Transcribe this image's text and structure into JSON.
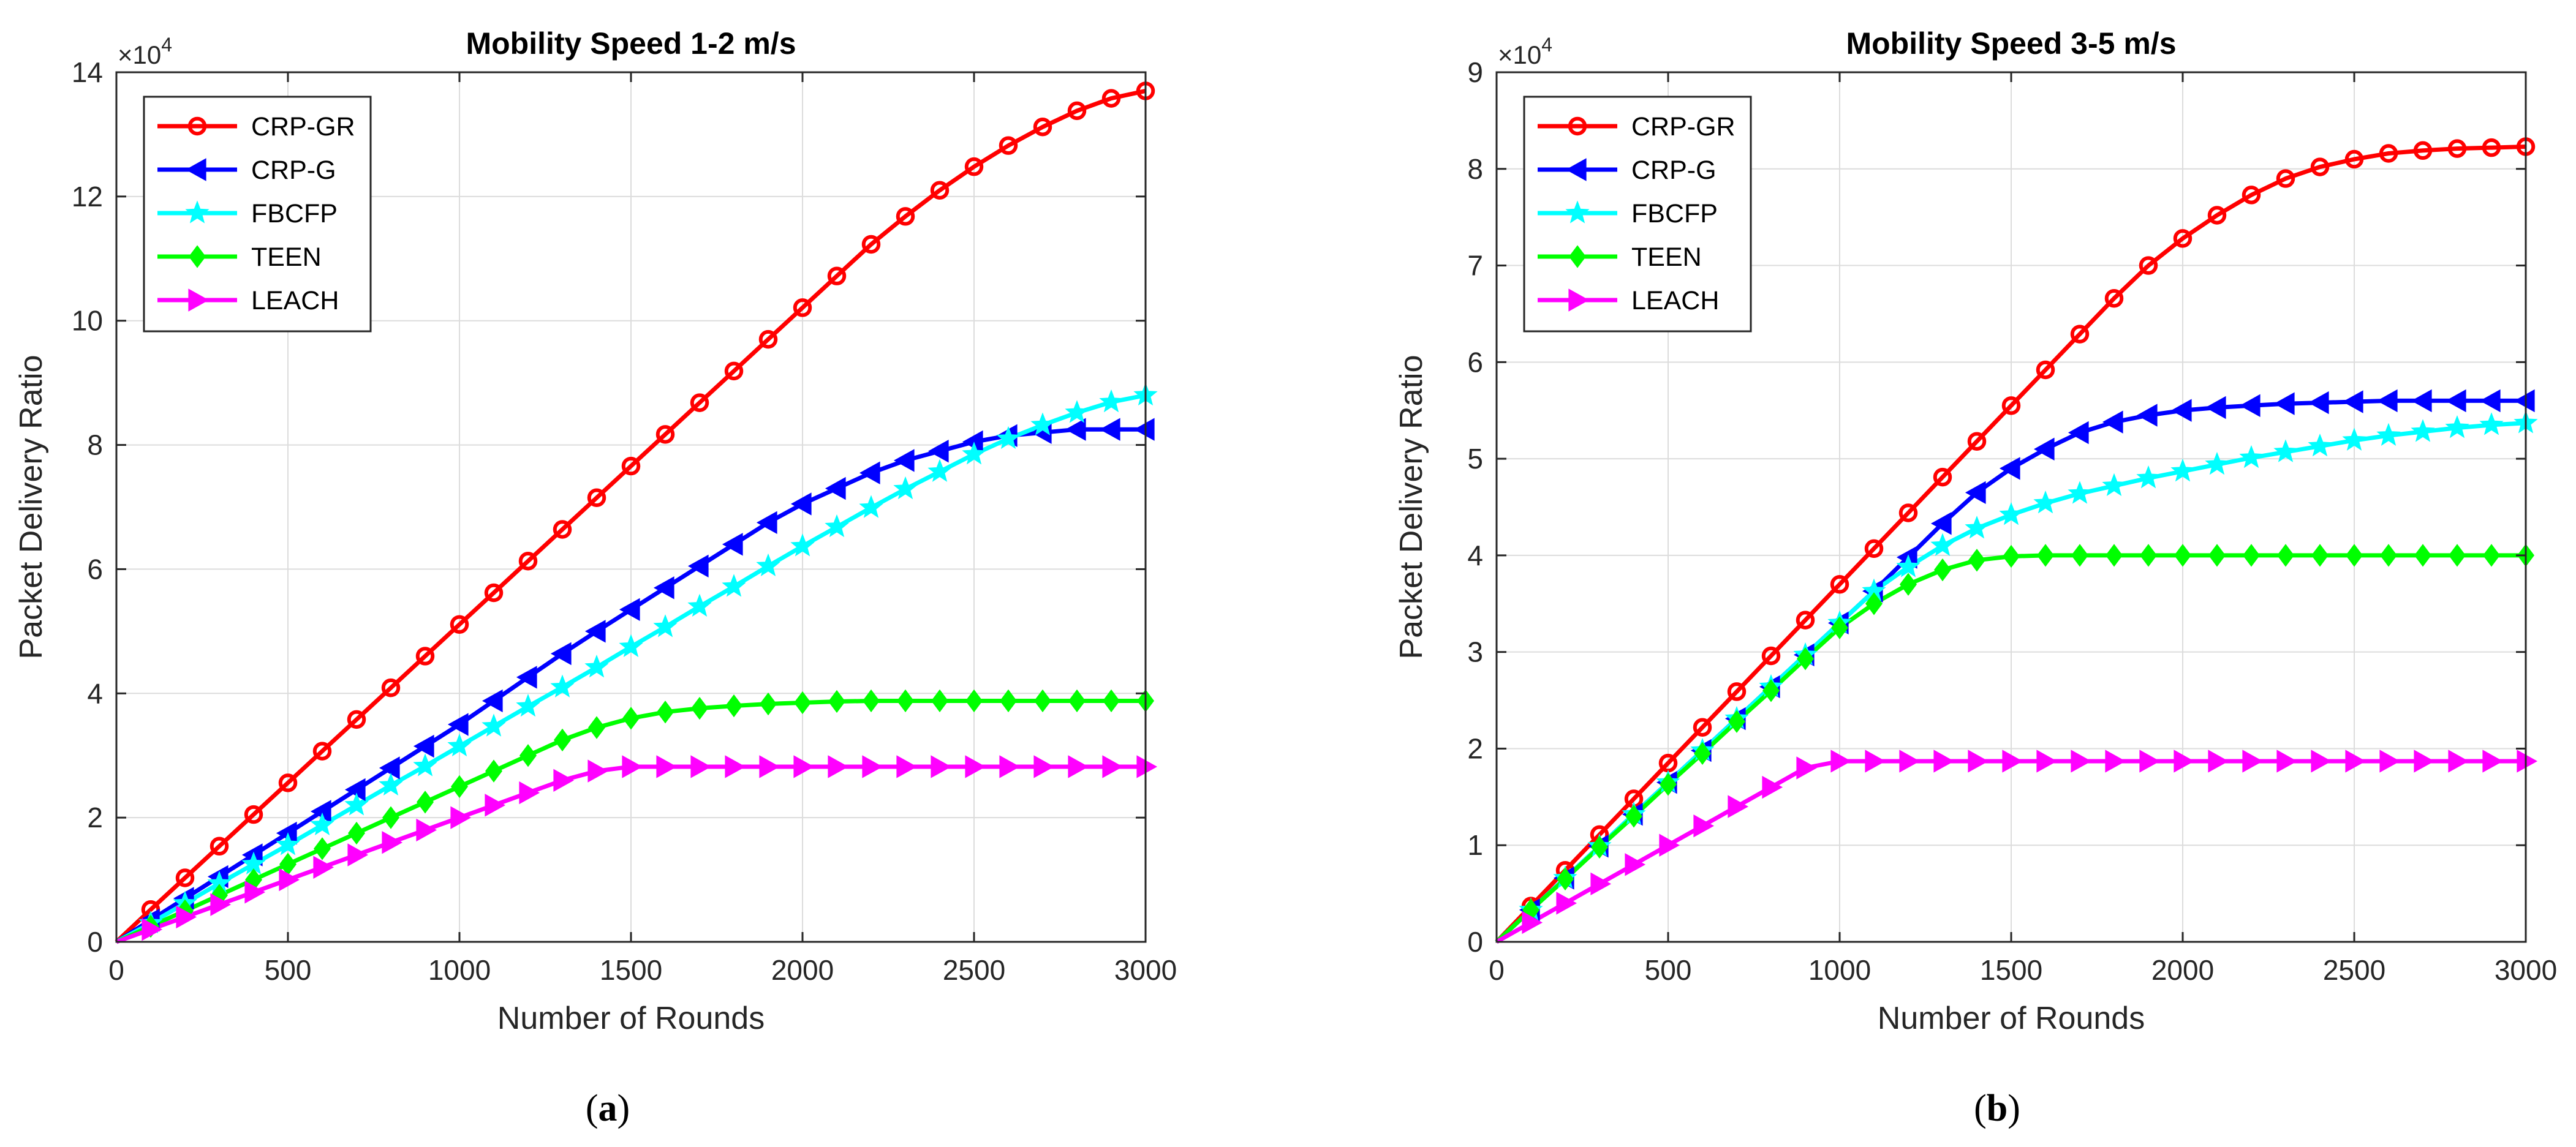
{
  "chart_data": [
    {
      "type": "line",
      "panel_label": "a",
      "title": "Mobility Speed 1-2 m/s",
      "xlabel": "Number of Rounds",
      "ylabel": "Packet Delivery Ratio",
      "exponent_label": "×10",
      "exponent_power": "4",
      "xlim": [
        0,
        3000
      ],
      "ylim": [
        0,
        140000
      ],
      "xticks": [
        0,
        500,
        1000,
        1500,
        2000,
        2500,
        3000
      ],
      "xtick_labels": [
        "0",
        "500",
        "1000",
        "1500",
        "2000",
        "2500",
        "3000"
      ],
      "yticks": [
        0,
        20000,
        40000,
        60000,
        80000,
        100000,
        120000,
        140000
      ],
      "ytick_labels": [
        "0",
        "2",
        "4",
        "6",
        "8",
        "10",
        "12",
        "14"
      ],
      "grid": true,
      "legend_position": "top-left",
      "x": [
        0,
        100,
        200,
        300,
        400,
        500,
        600,
        700,
        800,
        900,
        1000,
        1100,
        1200,
        1300,
        1400,
        1500,
        1600,
        1700,
        1800,
        1900,
        2000,
        2100,
        2200,
        2300,
        2400,
        2500,
        2600,
        2700,
        2800,
        2900,
        3000
      ],
      "series": [
        {
          "name": "CRP-GR",
          "color": "#ff0000",
          "marker": "circle",
          "values": [
            0,
            5200,
            10300,
            15400,
            20500,
            25600,
            30700,
            35800,
            40900,
            46000,
            51100,
            56200,
            61300,
            66400,
            71500,
            76600,
            81700,
            86800,
            91900,
            97000,
            102100,
            107200,
            112300,
            116800,
            121000,
            124800,
            128200,
            131200,
            133800,
            135800,
            137000
          ]
        },
        {
          "name": "CRP-G",
          "color": "#0000ff",
          "marker": "triangle-left",
          "values": [
            0,
            3500,
            7000,
            10500,
            14000,
            17500,
            21000,
            24500,
            28000,
            31500,
            35000,
            38800,
            42600,
            46400,
            50000,
            53500,
            57000,
            60500,
            64000,
            67500,
            70500,
            73000,
            75500,
            77500,
            79000,
            80500,
            81500,
            82000,
            82500,
            82500,
            82500
          ]
        },
        {
          "name": "FBCFP",
          "color": "#00ffff",
          "marker": "star",
          "values": [
            0,
            3000,
            6200,
            9400,
            12500,
            15600,
            18800,
            22000,
            25200,
            28300,
            31500,
            34700,
            37900,
            41000,
            44200,
            47500,
            50700,
            54000,
            57200,
            60500,
            63700,
            66800,
            69900,
            72900,
            75700,
            78500,
            81000,
            83200,
            85200,
            86900,
            88000
          ]
        },
        {
          "name": "TEEN",
          "color": "#00ff00",
          "marker": "diamond",
          "values": [
            0,
            2500,
            5000,
            7500,
            10000,
            12500,
            15000,
            17500,
            20000,
            22500,
            25000,
            27500,
            30000,
            32500,
            34500,
            36000,
            37000,
            37600,
            38000,
            38300,
            38500,
            38700,
            38800,
            38800,
            38800,
            38800,
            38800,
            38800,
            38800,
            38800,
            38800
          ]
        },
        {
          "name": "LEACH",
          "color": "#ff00ff",
          "marker": "triangle-right",
          "values": [
            0,
            2000,
            4000,
            6000,
            8000,
            10000,
            12000,
            14000,
            16000,
            18000,
            20000,
            22000,
            24000,
            26000,
            27500,
            28200,
            28200,
            28200,
            28200,
            28200,
            28200,
            28200,
            28200,
            28200,
            28200,
            28200,
            28200,
            28200,
            28200,
            28200,
            28200
          ]
        }
      ]
    },
    {
      "type": "line",
      "panel_label": "b",
      "title": "Mobility Speed 3-5 m/s",
      "xlabel": "Number of Rounds",
      "ylabel": "Packet Delivery Ratio",
      "exponent_label": "×10",
      "exponent_power": "4",
      "xlim": [
        0,
        3000
      ],
      "ylim": [
        0,
        90000
      ],
      "xticks": [
        0,
        500,
        1000,
        1500,
        2000,
        2500,
        3000
      ],
      "xtick_labels": [
        "0",
        "500",
        "1000",
        "1500",
        "2000",
        "2500",
        "3000"
      ],
      "yticks": [
        0,
        10000,
        20000,
        30000,
        40000,
        50000,
        60000,
        70000,
        80000,
        90000
      ],
      "ytick_labels": [
        "0",
        "1",
        "2",
        "3",
        "4",
        "5",
        "6",
        "7",
        "8",
        "9"
      ],
      "grid": true,
      "legend_position": "top-left",
      "x": [
        0,
        100,
        200,
        300,
        400,
        500,
        600,
        700,
        800,
        900,
        1000,
        1100,
        1200,
        1300,
        1400,
        1500,
        1600,
        1700,
        1800,
        1900,
        2000,
        2100,
        2200,
        2300,
        2400,
        2500,
        2600,
        2700,
        2800,
        2900,
        3000
      ],
      "series": [
        {
          "name": "CRP-GR",
          "color": "#ff0000",
          "marker": "circle",
          "values": [
            0,
            3700,
            7400,
            11100,
            14800,
            18500,
            22200,
            25900,
            29600,
            33300,
            37000,
            40700,
            44400,
            48100,
            51800,
            55500,
            59200,
            62900,
            66600,
            70000,
            72800,
            75200,
            77300,
            79000,
            80200,
            81000,
            81600,
            81900,
            82100,
            82200,
            82300
          ]
        },
        {
          "name": "CRP-G",
          "color": "#0000ff",
          "marker": "triangle-left",
          "values": [
            0,
            3300,
            6600,
            9900,
            13200,
            16500,
            19800,
            23100,
            26400,
            29700,
            33000,
            36300,
            39800,
            43300,
            46500,
            49000,
            51000,
            52700,
            53800,
            54500,
            55000,
            55300,
            55500,
            55700,
            55800,
            55900,
            56000,
            56000,
            56000,
            56000,
            56000
          ]
        },
        {
          "name": "FBCFP",
          "color": "#00ffff",
          "marker": "star",
          "values": [
            0,
            3300,
            6600,
            9900,
            13200,
            16500,
            19800,
            23100,
            26400,
            29700,
            33000,
            36300,
            38800,
            41000,
            42800,
            44200,
            45400,
            46400,
            47200,
            48000,
            48700,
            49400,
            50100,
            50700,
            51300,
            51900,
            52400,
            52800,
            53200,
            53500,
            53700
          ]
        },
        {
          "name": "TEEN",
          "color": "#00ff00",
          "marker": "diamond",
          "values": [
            0,
            3300,
            6500,
            9800,
            13000,
            16300,
            19500,
            22800,
            26000,
            29300,
            32500,
            35000,
            37000,
            38500,
            39500,
            39900,
            40000,
            40000,
            40000,
            40000,
            40000,
            40000,
            40000,
            40000,
            40000,
            40000,
            40000,
            40000,
            40000,
            40000,
            40000
          ]
        },
        {
          "name": "LEACH",
          "color": "#ff00ff",
          "marker": "triangle-right",
          "values": [
            0,
            2000,
            4000,
            6000,
            8000,
            10000,
            12000,
            14000,
            16000,
            18000,
            18700,
            18700,
            18700,
            18700,
            18700,
            18700,
            18700,
            18700,
            18700,
            18700,
            18700,
            18700,
            18700,
            18700,
            18700,
            18700,
            18700,
            18700,
            18700,
            18700,
            18700
          ]
        }
      ]
    }
  ]
}
